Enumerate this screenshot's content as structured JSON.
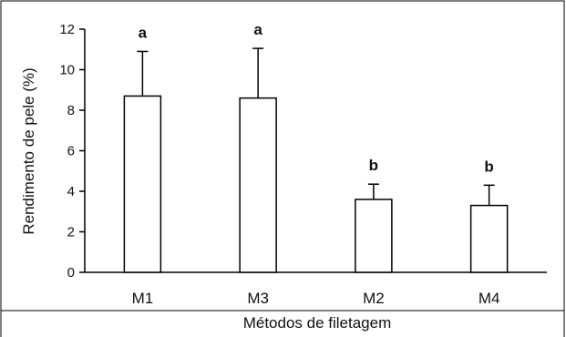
{
  "chart_data": {
    "type": "bar",
    "title": "",
    "xlabel": "Métodos de filetagem",
    "ylabel": "Rendimento de pele (%)",
    "categories": [
      "M1",
      "M3",
      "M2",
      "M4"
    ],
    "values": [
      8.7,
      8.6,
      3.6,
      3.3
    ],
    "errors": [
      2.2,
      2.45,
      0.75,
      1.0
    ],
    "significance_letters": [
      "a",
      "a",
      "b",
      "b"
    ],
    "ylim": [
      0,
      12
    ],
    "yticks": [
      "0",
      "2",
      "4",
      "6",
      "8",
      "10",
      "12"
    ],
    "ytick_values": [
      0,
      2,
      4,
      6,
      8,
      10,
      12
    ],
    "grid": false,
    "legend": "none",
    "bar_fill": "#ffffff",
    "bar_stroke": "#000000"
  }
}
